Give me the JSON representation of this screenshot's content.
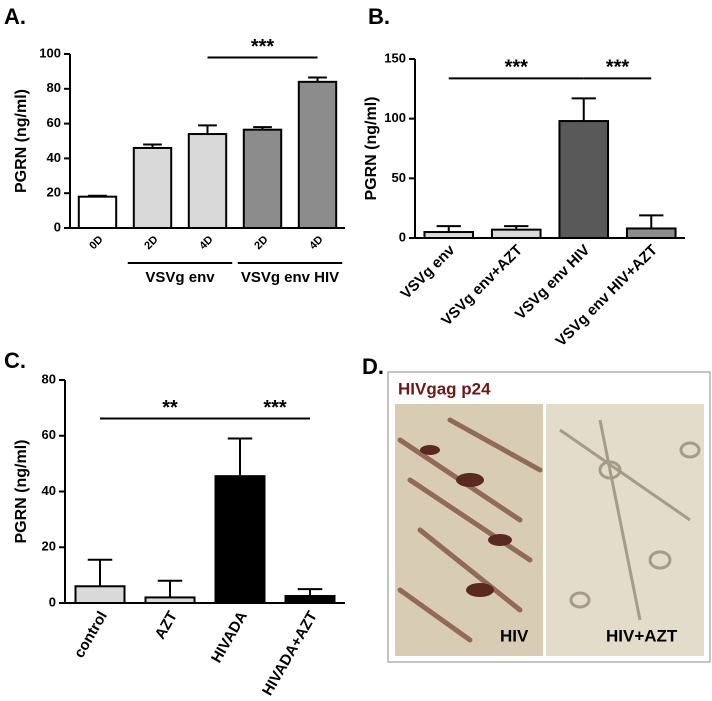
{
  "chart_data": [
    {
      "type": "bar",
      "panel_label": "A.",
      "ylabel": "PGRN (ng/ml)",
      "categories": [
        "0D",
        "2D",
        "4D",
        "2D",
        "4D"
      ],
      "values": [
        18,
        46,
        54,
        56.5,
        84
      ],
      "errors": [
        0.5,
        2,
        5,
        1.5,
        2.5
      ],
      "colors": [
        "#ffffff",
        "#d9d9d9",
        "#d9d9d9",
        "#8c8c8c",
        "#8c8c8c"
      ],
      "groups": [
        {
          "label": "VSVg env",
          "from": 1,
          "to": 2
        },
        {
          "label": "VSVg env HIV",
          "from": 3,
          "to": 4
        }
      ],
      "annotations": [
        {
          "text": "***",
          "from": 2,
          "to": 4
        }
      ],
      "ylim": [
        0,
        100
      ],
      "yticks": [
        0,
        20,
        40,
        60,
        80,
        100
      ]
    },
    {
      "type": "bar",
      "panel_label": "B.",
      "ylabel": "PGRN (ng/ml)",
      "categories": [
        "VSVg env",
        "VSVg env+AZT",
        "VSVg env HIV",
        "VSVg env HIV+AZT"
      ],
      "values": [
        5,
        7,
        98,
        8
      ],
      "errors": [
        5,
        3,
        19,
        11
      ],
      "colors": [
        "#d9d9d9",
        "#d9d9d9",
        "#595959",
        "#8c8c8c"
      ],
      "annotations": [
        {
          "text": "***",
          "from": 0,
          "to": 2
        },
        {
          "text": "***",
          "from": 2,
          "to": 3
        }
      ],
      "ylim": [
        0,
        150
      ],
      "yticks": [
        0,
        50,
        100,
        150
      ]
    },
    {
      "type": "bar",
      "panel_label": "C.",
      "ylabel": "PGRN (ng/ml)",
      "categories": [
        "control",
        "AZT",
        "HIVADA",
        "HIVADA+AZT"
      ],
      "values": [
        6,
        2,
        45.5,
        2.5
      ],
      "errors": [
        9.5,
        6,
        13.5,
        2.5
      ],
      "colors": [
        "#d9d9d9",
        "#d9d9d9",
        "#000000",
        "#000000"
      ],
      "annotations": [
        {
          "text": "**",
          "from": 0,
          "to": 2
        },
        {
          "text": "***",
          "from": 2,
          "to": 3
        }
      ],
      "ylim": [
        0,
        80
      ],
      "yticks": [
        0,
        20,
        40,
        60,
        80
      ]
    }
  ],
  "image_panel": {
    "panel_label": "D.",
    "title": "HIVgag p24",
    "captions": [
      "HIV",
      "HIV+AZT"
    ]
  }
}
